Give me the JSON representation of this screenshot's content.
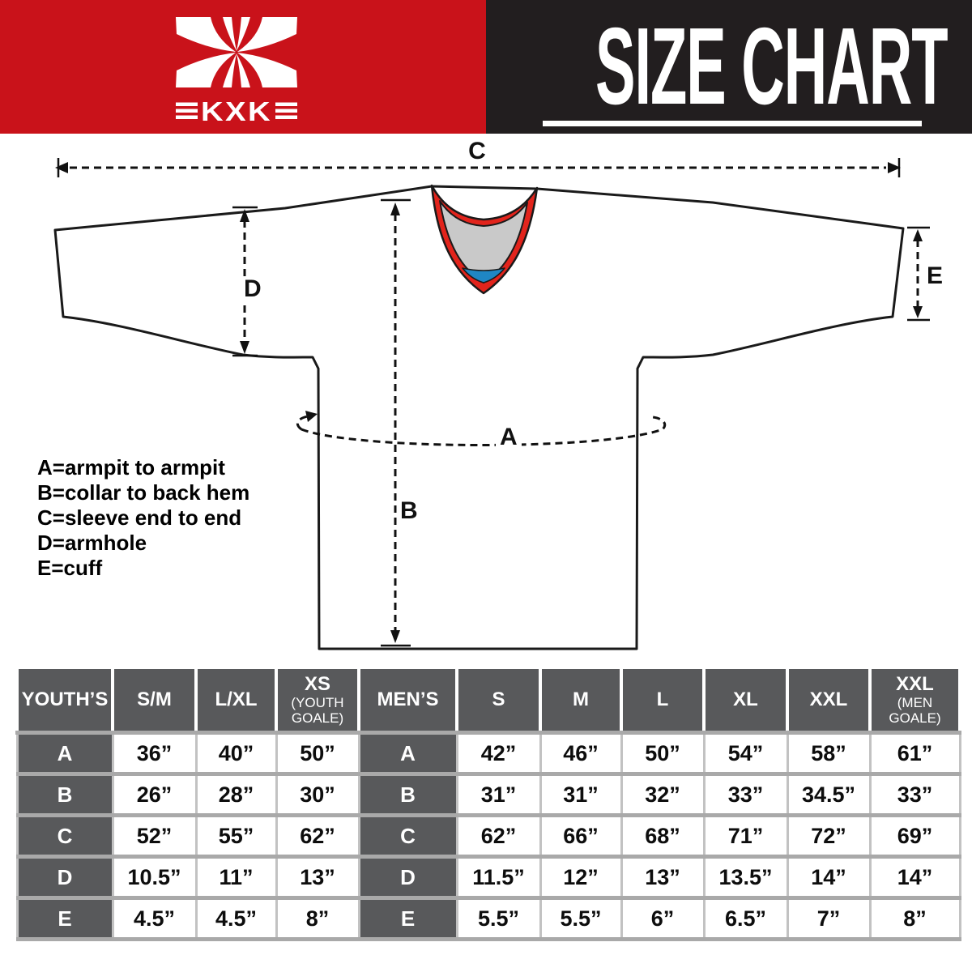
{
  "brand": {
    "name": "KXK",
    "logo_text": "KXK",
    "logo_icon": "kxk-x-emblem"
  },
  "header": {
    "title": "SIZE CHART"
  },
  "colors": {
    "brand_red": "#c9121a",
    "panel_black": "#221e1f",
    "collar_red": "#e2241c",
    "collar_inner_gray": "#c9c9c9",
    "collar_accent_blue": "#1f86c4",
    "table_header_gray": "#58595b",
    "table_border_gray": "#a9a9a9"
  },
  "diagram": {
    "arrow_labels": {
      "A": "A",
      "B": "B",
      "C": "C",
      "D": "D",
      "E": "E"
    },
    "legend": [
      "A=armpit to armpit",
      "B=collar to back hem",
      "C=sleeve end to end",
      "D=armhole",
      "E=cuff"
    ]
  },
  "size_table": {
    "columns": [
      {
        "label": "YOUTH’S"
      },
      {
        "label": "S/M"
      },
      {
        "label": "L/XL"
      },
      {
        "label": "XS",
        "sub": "(YOUTH GOALE)"
      },
      {
        "label": "MEN’S"
      },
      {
        "label": "S"
      },
      {
        "label": "M"
      },
      {
        "label": "L"
      },
      {
        "label": "XL"
      },
      {
        "label": "XXL"
      },
      {
        "label": "XXL",
        "sub": "(MEN GOALE)"
      }
    ],
    "rows": [
      {
        "label": "A",
        "youth": [
          "36”",
          "40”",
          "50”"
        ],
        "men": [
          "42”",
          "46”",
          "50”",
          "54”",
          "58”",
          "61”"
        ]
      },
      {
        "label": "B",
        "youth": [
          "26”",
          "28”",
          "30”"
        ],
        "men": [
          "31”",
          "31”",
          "32”",
          "33”",
          "34.5”",
          "33”"
        ]
      },
      {
        "label": "C",
        "youth": [
          "52”",
          "55”",
          "62”"
        ],
        "men": [
          "62”",
          "66”",
          "68”",
          "71”",
          "72”",
          "69”"
        ]
      },
      {
        "label": "D",
        "youth": [
          "10.5”",
          "11”",
          "13”"
        ],
        "men": [
          "11.5”",
          "12”",
          "13”",
          "13.5”",
          "14”",
          "14”"
        ]
      },
      {
        "label": "E",
        "youth": [
          "4.5”",
          "4.5”",
          "8”"
        ],
        "men": [
          "5.5”",
          "5.5”",
          "6”",
          "6.5”",
          "7”",
          "8”"
        ]
      }
    ]
  }
}
